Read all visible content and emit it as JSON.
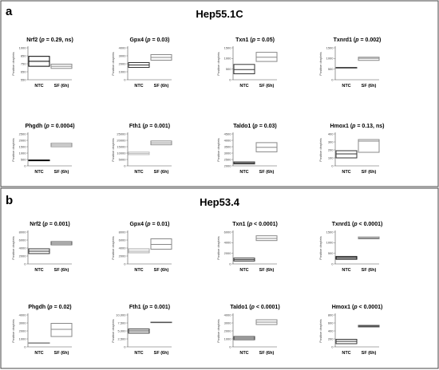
{
  "panels": [
    {
      "letter": "a",
      "title": "Hep55.1C",
      "charts": [
        {
          "type": "box",
          "gene": "Nrf2",
          "stat_prefix": "(",
          "stat_p": "p",
          "stat_suffix": " = 0.29, ns)",
          "ylabel": "Positive droplets",
          "categories": [
            "NTC",
            "SF (6h)"
          ],
          "ylim": [
            550,
            1000
          ],
          "yticks": [
            "550",
            "650",
            "750",
            "850",
            "1000"
          ],
          "boxes": [
            {
              "low": 740,
              "mid": 810,
              "high": 880,
              "color": "#000000"
            },
            {
              "low": 710,
              "mid": 740,
              "high": 770,
              "color": "#888888"
            }
          ]
        },
        {
          "type": "box",
          "gene": "Gpx4",
          "stat_prefix": "(",
          "stat_p": "p",
          "stat_suffix": " = 0.03)",
          "ylabel": "Positive droplets",
          "categories": [
            "NTC",
            "SF (6h)"
          ],
          "ylim": [
            0,
            4000
          ],
          "yticks": [
            "0",
            "1000",
            "2000",
            "3000",
            "4000"
          ],
          "boxes": [
            {
              "low": 1550,
              "mid": 1850,
              "high": 2150,
              "color": "#333333"
            },
            {
              "low": 2450,
              "mid": 2800,
              "high": 3150,
              "color": "#888888"
            }
          ]
        },
        {
          "type": "box",
          "gene": "Txn1",
          "stat_prefix": "(",
          "stat_p": "p",
          "stat_suffix": " = 0.05)",
          "ylabel": "Positive droplets",
          "categories": [
            "NTC",
            "SF (6h)"
          ],
          "ylim": [
            0,
            1500
          ],
          "yticks": [
            "0",
            "500",
            "1000",
            "1500"
          ],
          "boxes": [
            {
              "low": 280,
              "mid": 480,
              "high": 720,
              "color": "#333333"
            },
            {
              "low": 860,
              "mid": 1060,
              "high": 1290,
              "color": "#888888"
            }
          ]
        },
        {
          "type": "box",
          "gene": "Txnrd1",
          "stat_prefix": "(",
          "stat_p": "p",
          "stat_suffix": " = 0.002)",
          "ylabel": "Positive droplets",
          "categories": [
            "NTC",
            "SF (6h)"
          ],
          "ylim": [
            0,
            1500
          ],
          "yticks": [
            "0",
            "500",
            "1000",
            "1500"
          ],
          "boxes": [
            {
              "low": 565,
              "mid": 570,
              "high": 575,
              "color": "#333333"
            },
            {
              "low": 910,
              "mid": 1010,
              "high": 1060,
              "color": "#888888"
            }
          ]
        },
        {
          "type": "box",
          "gene": "Phgdh",
          "stat_prefix": "(",
          "stat_p": "p",
          "stat_suffix": " = 0.0004)",
          "ylabel": "Positive droplets",
          "categories": [
            "NTC",
            "SF (6h)"
          ],
          "ylim": [
            0,
            2500
          ],
          "yticks": [
            "0",
            "500",
            "1000",
            "1500",
            "2000",
            "2500"
          ],
          "boxes": [
            {
              "low": 400,
              "mid": 430,
              "high": 460,
              "color": "#000000"
            },
            {
              "low": 1500,
              "mid": 1630,
              "high": 1770,
              "color": "#888888"
            }
          ]
        },
        {
          "type": "box",
          "gene": "Fth1",
          "stat_prefix": "(",
          "stat_p": "p",
          "stat_suffix": " = 0.001)",
          "ylabel": "Positive droplets",
          "categories": [
            "NTC",
            "SF (6h)"
          ],
          "ylim": [
            0,
            25000
          ],
          "yticks": [
            "0",
            "5000",
            "10000",
            "15000",
            "20000",
            "25000"
          ],
          "boxes": [
            {
              "low": 8800,
              "mid": 9800,
              "high": 10800,
              "color": "#bbbbbb"
            },
            {
              "low": 16500,
              "mid": 18000,
              "high": 19500,
              "color": "#888888"
            }
          ]
        },
        {
          "type": "box",
          "gene": "Taldo1",
          "stat_prefix": "(",
          "stat_p": "p",
          "stat_suffix": " = 0.03)",
          "ylabel": "Positive droplets",
          "categories": [
            "NTC",
            "SF (6h)"
          ],
          "ylim": [
            2000,
            4500
          ],
          "yticks": [
            "2000",
            "2500",
            "3000",
            "3500",
            "4000",
            "4500"
          ],
          "boxes": [
            {
              "low": 2150,
              "mid": 2230,
              "high": 2310,
              "color": "#333333"
            },
            {
              "low": 3100,
              "mid": 3450,
              "high": 3820,
              "color": "#888888"
            }
          ]
        },
        {
          "type": "box",
          "gene": "Hmox1",
          "stat_prefix": "(",
          "stat_p": "p",
          "stat_suffix": " = 0.13, ns)",
          "ylabel": "Positive droplets",
          "categories": [
            "NTC",
            "SF (6h)"
          ],
          "ylim": [
            0,
            400
          ],
          "yticks": [
            "0",
            "100",
            "200",
            "300",
            "400"
          ],
          "boxes": [
            {
              "low": 100,
              "mid": 150,
              "high": 190,
              "color": "#333333"
            },
            {
              "low": 170,
              "mid": 310,
              "high": 330,
              "color": "#888888"
            }
          ]
        }
      ]
    },
    {
      "letter": "b",
      "title": "Hep53.4",
      "charts": [
        {
          "type": "box",
          "gene": "Nrf2",
          "stat_prefix": "(",
          "stat_p": "p",
          "stat_suffix": " = 0.001)",
          "ylabel": "Positive droplets",
          "categories": [
            "NTC",
            "SF (6h)"
          ],
          "ylim": [
            0,
            8000
          ],
          "yticks": [
            "0",
            "2000",
            "4000",
            "6000",
            "8000"
          ],
          "boxes": [
            {
              "low": 2600,
              "mid": 3200,
              "high": 3800,
              "color": "#333333"
            },
            {
              "low": 4800,
              "mid": 5200,
              "high": 5600,
              "color": "#555555"
            }
          ]
        },
        {
          "type": "box",
          "gene": "Gpx4",
          "stat_prefix": "(",
          "stat_p": "p",
          "stat_suffix": " = 0.01)",
          "ylabel": "Positive droplets",
          "categories": [
            "NTC",
            "SF (6h)"
          ],
          "ylim": [
            0,
            8000
          ],
          "yticks": [
            "0",
            "2000",
            "4000",
            "6000",
            "8000"
          ],
          "boxes": [
            {
              "low": 2800,
              "mid": 3200,
              "high": 3800,
              "color": "#aaaaaa"
            },
            {
              "low": 3700,
              "mid": 4900,
              "high": 6300,
              "color": "#888888"
            }
          ]
        },
        {
          "type": "box",
          "gene": "Txn1",
          "stat_prefix": "(",
          "stat_p": "p",
          "stat_suffix": " < 0.0001)",
          "ylabel": "Positive droplets",
          "categories": [
            "NTC",
            "SF (6h)"
          ],
          "ylim": [
            0,
            6000
          ],
          "yticks": [
            "0",
            "2000",
            "4000",
            "6000"
          ],
          "boxes": [
            {
              "low": 550,
              "mid": 800,
              "high": 1100,
              "color": "#333333"
            },
            {
              "low": 4400,
              "mid": 4800,
              "high": 5300,
              "color": "#888888"
            }
          ]
        },
        {
          "type": "box",
          "gene": "Txnrd1",
          "stat_prefix": "(",
          "stat_p": "p",
          "stat_suffix": " < 0.0001)",
          "ylabel": "Positive droplets",
          "categories": [
            "NTC",
            "SF (6h)"
          ],
          "ylim": [
            0,
            1500
          ],
          "yticks": [
            "0",
            "500",
            "1000",
            "1500"
          ],
          "boxes": [
            {
              "low": 220,
              "mid": 290,
              "high": 350,
              "color": "#000000"
            },
            {
              "low": 1180,
              "mid": 1220,
              "high": 1270,
              "color": "#888888"
            }
          ]
        },
        {
          "type": "box",
          "gene": "Phgdh",
          "stat_prefix": "(",
          "stat_p": "p",
          "stat_suffix": " = 0.02)",
          "ylabel": "Positive droplets",
          "categories": [
            "NTC",
            "SF (6h)"
          ],
          "ylim": [
            0,
            4000
          ],
          "yticks": [
            "0",
            "1000",
            "2000",
            "3000",
            "4000"
          ],
          "boxes": [
            {
              "low": 490,
              "mid": 500,
              "high": 510,
              "color": "#888888"
            },
            {
              "low": 1300,
              "mid": 2200,
              "high": 2950,
              "color": "#888888"
            }
          ]
        },
        {
          "type": "box",
          "gene": "Fth1",
          "stat_prefix": "(",
          "stat_p": "p",
          "stat_suffix": " = 0.001)",
          "ylabel": "Positive droplets",
          "categories": [
            "NTC",
            "SF (6h)"
          ],
          "ylim": [
            0,
            10000
          ],
          "yticks": [
            "0",
            "2,500",
            "5,000",
            "7,500",
            "10,000"
          ],
          "boxes": [
            {
              "low": 4300,
              "mid": 5000,
              "high": 5600,
              "color": "#333333"
            },
            {
              "low": 7650,
              "mid": 7700,
              "high": 7750,
              "color": "#555555"
            }
          ]
        },
        {
          "type": "box",
          "gene": "Taldo1",
          "stat_prefix": "(",
          "stat_p": "p",
          "stat_suffix": " < 0.0001)",
          "ylabel": "Positive droplets",
          "categories": [
            "NTC",
            "SF (6h)"
          ],
          "ylim": [
            0,
            4000
          ],
          "yticks": [
            "0",
            "1000",
            "2000",
            "3000",
            "4000"
          ],
          "boxes": [
            {
              "low": 900,
              "mid": 1100,
              "high": 1300,
              "color": "#333333"
            },
            {
              "low": 2800,
              "mid": 3100,
              "high": 3400,
              "color": "#888888"
            }
          ]
        },
        {
          "type": "box",
          "gene": "Hmox1",
          "stat_prefix": "(",
          "stat_p": "p",
          "stat_suffix": " < 0.0001)",
          "ylabel": "Positive droplets",
          "categories": [
            "NTC",
            "SF (6h)"
          ],
          "ylim": [
            0,
            800
          ],
          "yticks": [
            "0",
            "200",
            "400",
            "600",
            "800"
          ],
          "boxes": [
            {
              "low": 80,
              "mid": 140,
              "high": 190,
              "color": "#333333"
            },
            {
              "low": 500,
              "mid": 520,
              "high": 540,
              "color": "#555555"
            }
          ]
        }
      ]
    }
  ]
}
